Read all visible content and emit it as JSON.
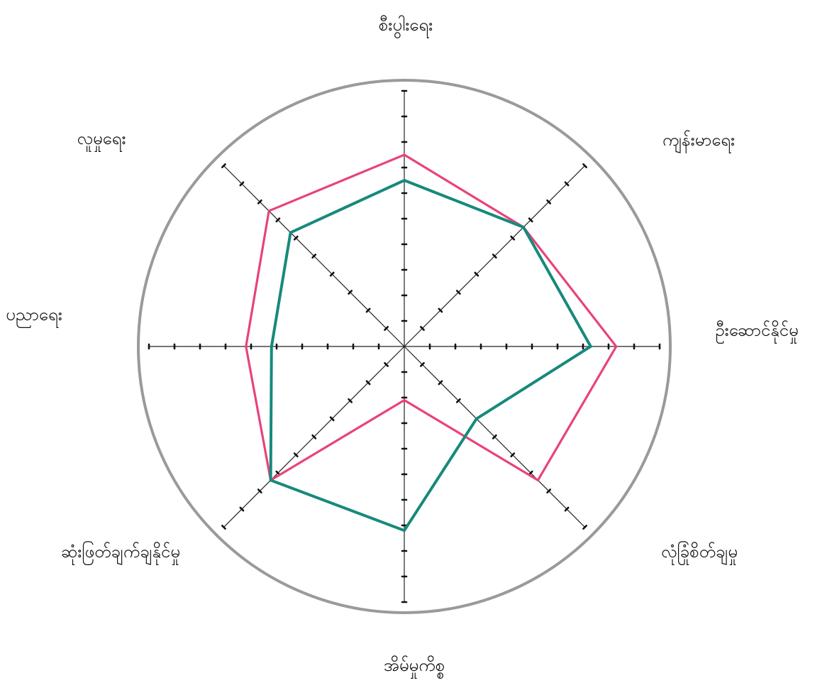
{
  "chart_data": {
    "type": "radar",
    "axes": [
      "စီးပွါးရေး",
      "ကျန်းမာရေး",
      "ဦးဆောင်နိုင်မှု",
      "လုံခြုံစိတ်ချမှု",
      "အိမ်မှုကိစ္စ",
      "ဆုံးဖြတ်ချက်ချနိုင်မှု",
      "ပညာရေး",
      "လူမှုရေး"
    ],
    "scale": {
      "min": 0,
      "max": 10,
      "ticks": 10
    },
    "grid": {
      "circle": true,
      "spokes": true
    },
    "series": [
      {
        "color": "#e8437a",
        "values": [
          7.5,
          6.6,
          8.3,
          7.4,
          2.1,
          7.4,
          6.2,
          7.5
        ]
      },
      {
        "color": "#17897c",
        "values": [
          6.5,
          6.6,
          7.3,
          4.0,
          7.2,
          7.4,
          5.2,
          6.3
        ]
      }
    ],
    "colors": {
      "outer_circle": "#9a9a9a",
      "spoke": "#222222"
    }
  }
}
